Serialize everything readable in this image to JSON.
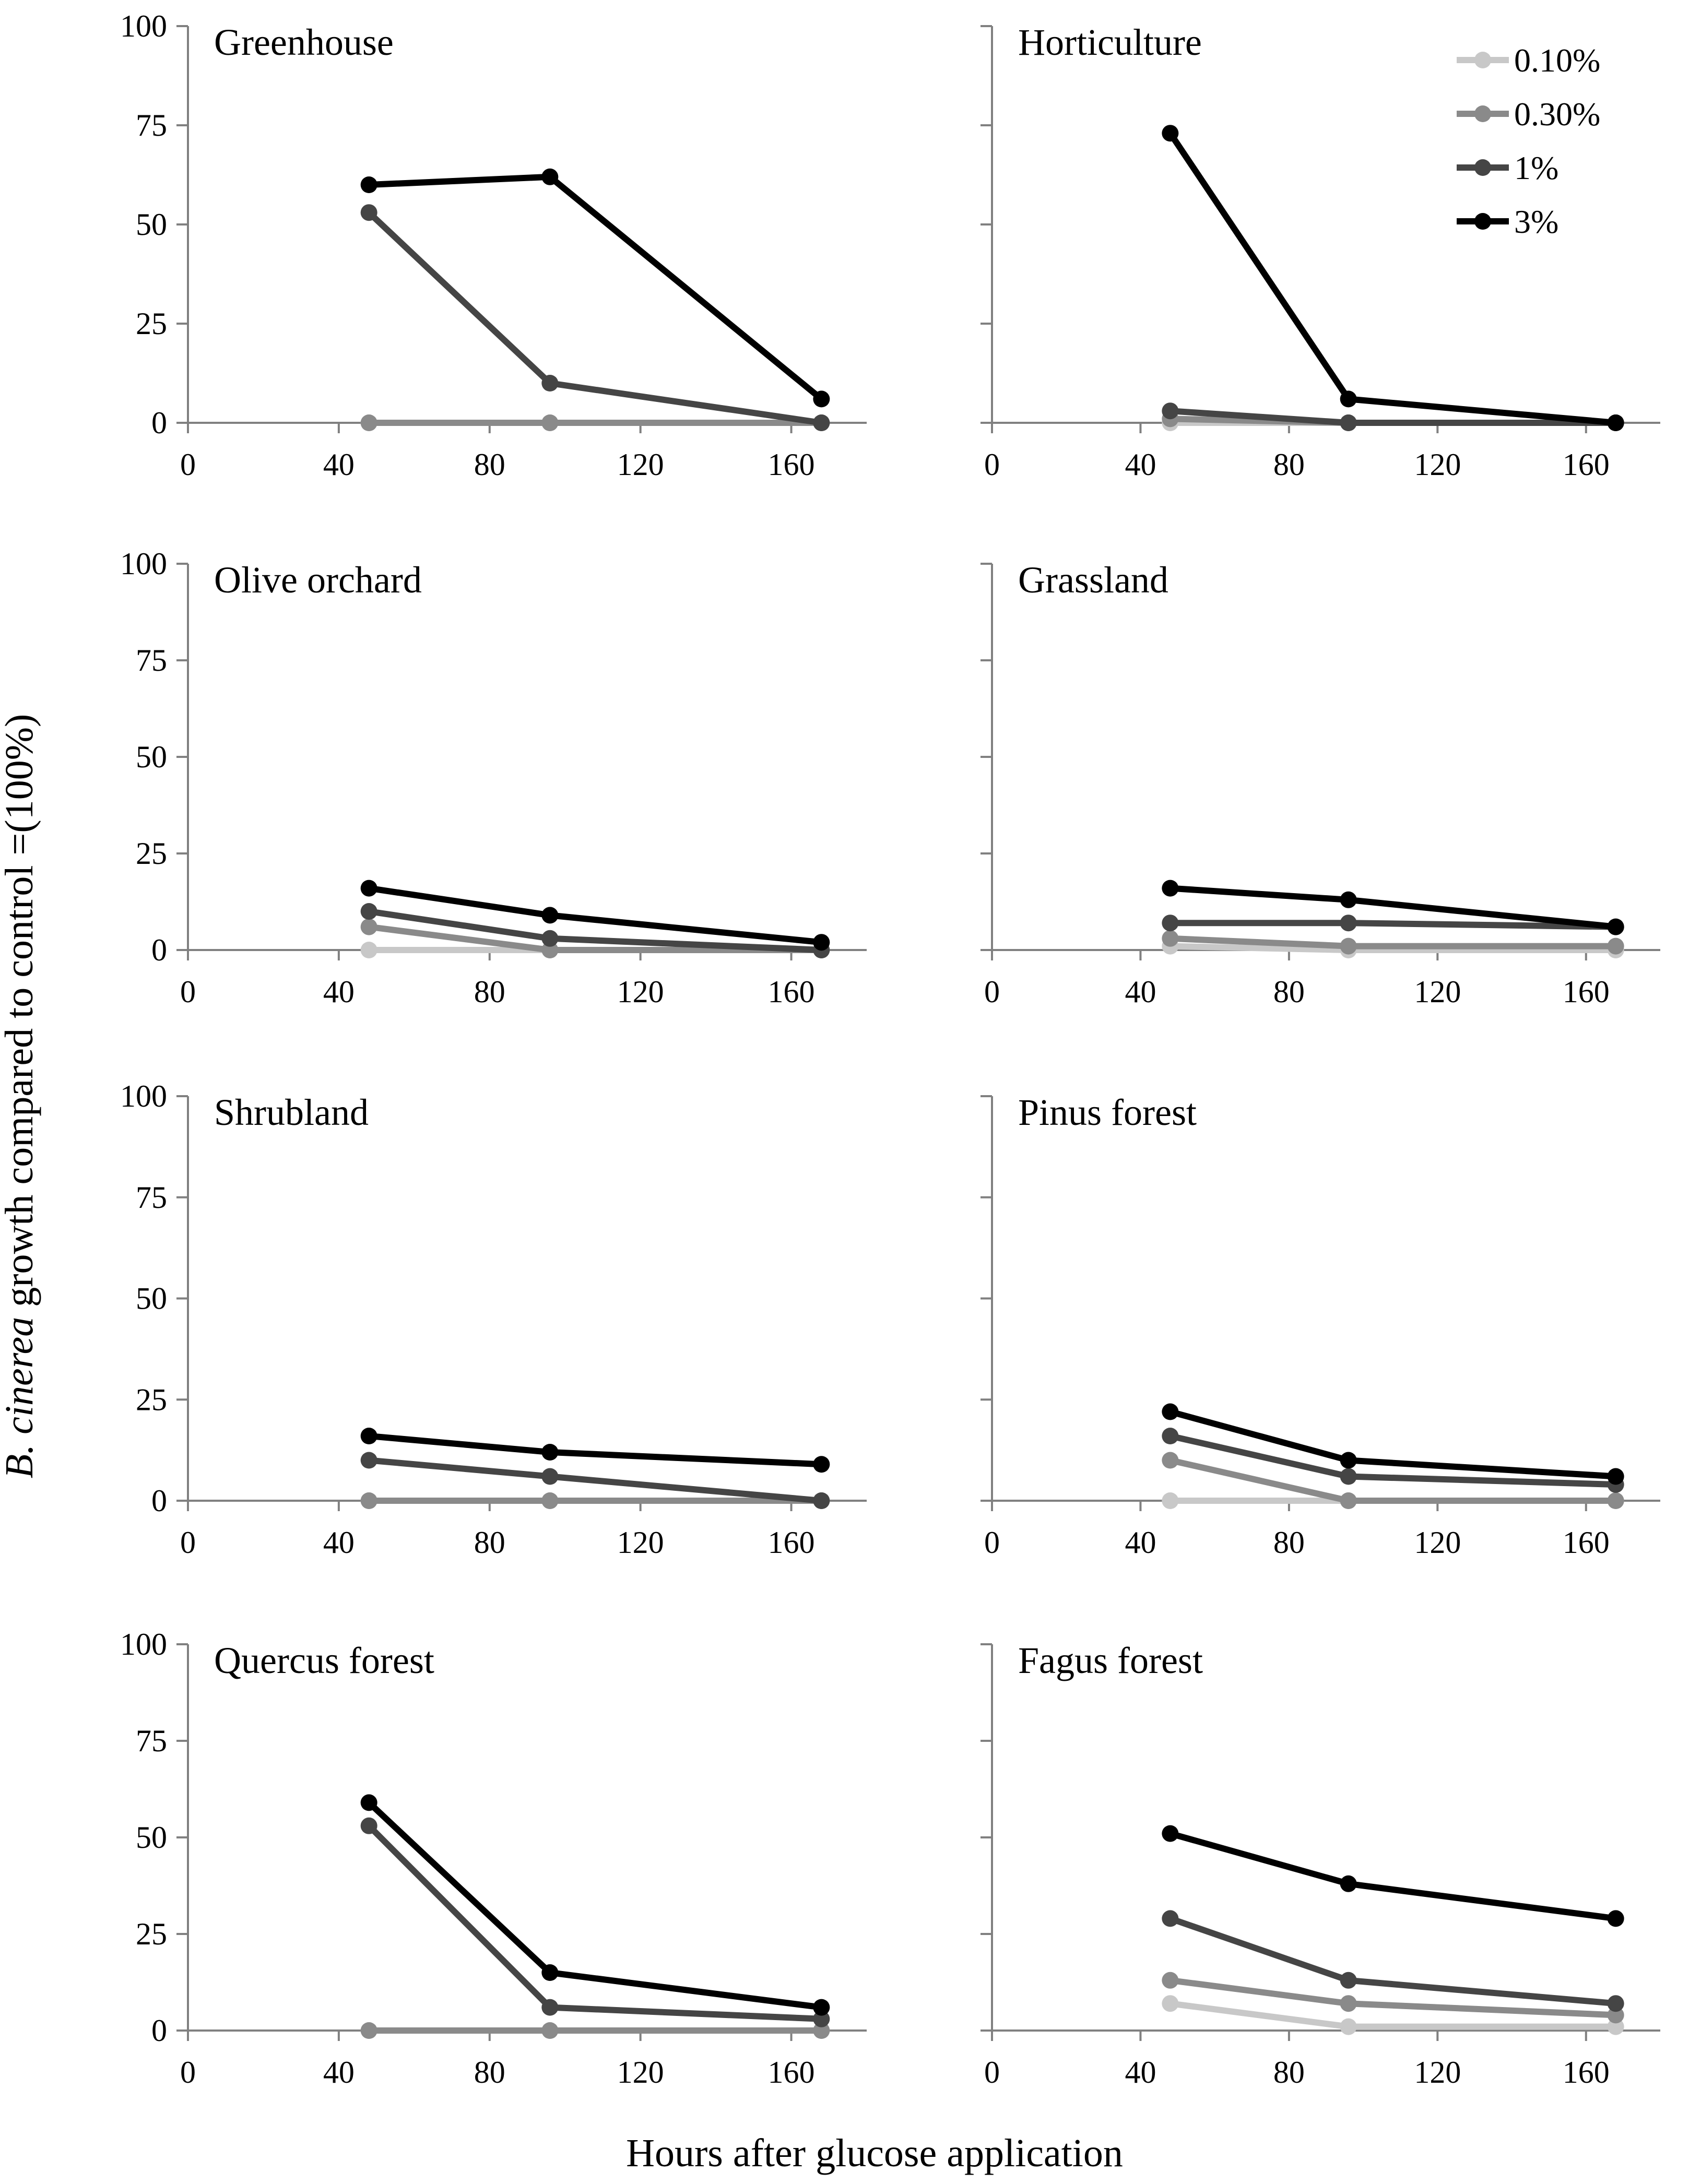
{
  "figure": {
    "y_axis_title_italic": "B. cinerea",
    "y_axis_title_rest": " growth compared to control =(100%)",
    "x_axis_title": "Hours after glucose application"
  },
  "legend": [
    {
      "label": "0.10%",
      "color": "#c8c8c8"
    },
    {
      "label": "0.30%",
      "color": "#8a8a8a"
    },
    {
      "label": "1%",
      "color": "#454545"
    },
    {
      "label": "3%",
      "color": "#000000"
    }
  ],
  "chart_data": [
    {
      "type": "line",
      "title": "Greenhouse",
      "x": [
        48,
        96,
        168
      ],
      "xlim": [
        0,
        180
      ],
      "xticks": [
        0,
        40,
        80,
        120,
        160
      ],
      "ylim": [
        0,
        100
      ],
      "yticks": [
        0,
        25,
        50,
        75,
        100
      ],
      "series": [
        {
          "name": "0.10%",
          "values": [
            0,
            0,
            0
          ]
        },
        {
          "name": "0.30%",
          "values": [
            0,
            0,
            0
          ]
        },
        {
          "name": "1%",
          "values": [
            53,
            10,
            0
          ]
        },
        {
          "name": "3%",
          "values": [
            60,
            62,
            6
          ]
        }
      ]
    },
    {
      "type": "line",
      "title": "Horticulture",
      "x": [
        48,
        96,
        168
      ],
      "xlim": [
        0,
        180
      ],
      "xticks": [
        0,
        40,
        80,
        120,
        160
      ],
      "ylim": [
        0,
        100
      ],
      "yticks": [
        0,
        25,
        50,
        75,
        100
      ],
      "series": [
        {
          "name": "0.10%",
          "values": [
            0,
            0,
            0
          ]
        },
        {
          "name": "0.30%",
          "values": [
            1,
            0,
            0
          ]
        },
        {
          "name": "1%",
          "values": [
            3,
            0,
            0
          ]
        },
        {
          "name": "3%",
          "values": [
            73,
            6,
            0
          ]
        }
      ]
    },
    {
      "type": "line",
      "title": "Olive orchard",
      "x": [
        48,
        96,
        168
      ],
      "xlim": [
        0,
        180
      ],
      "xticks": [
        0,
        40,
        80,
        120,
        160
      ],
      "ylim": [
        0,
        100
      ],
      "yticks": [
        0,
        25,
        50,
        75,
        100
      ],
      "series": [
        {
          "name": "0.10%",
          "values": [
            0,
            0,
            0
          ]
        },
        {
          "name": "0.30%",
          "values": [
            6,
            0,
            0
          ]
        },
        {
          "name": "1%",
          "values": [
            10,
            3,
            0
          ]
        },
        {
          "name": "3%",
          "values": [
            16,
            9,
            2
          ]
        }
      ]
    },
    {
      "type": "line",
      "title": "Grassland",
      "x": [
        48,
        96,
        168
      ],
      "xlim": [
        0,
        180
      ],
      "xticks": [
        0,
        40,
        80,
        120,
        160
      ],
      "ylim": [
        0,
        100
      ],
      "yticks": [
        0,
        25,
        50,
        75,
        100
      ],
      "series": [
        {
          "name": "0.10%",
          "values": [
            1,
            0,
            0
          ]
        },
        {
          "name": "0.30%",
          "values": [
            3,
            1,
            1
          ]
        },
        {
          "name": "1%",
          "values": [
            7,
            7,
            6
          ]
        },
        {
          "name": "3%",
          "values": [
            16,
            13,
            6
          ]
        }
      ]
    },
    {
      "type": "line",
      "title": "Shrubland",
      "x": [
        48,
        96,
        168
      ],
      "xlim": [
        0,
        180
      ],
      "xticks": [
        0,
        40,
        80,
        120,
        160
      ],
      "ylim": [
        0,
        100
      ],
      "yticks": [
        0,
        25,
        50,
        75,
        100
      ],
      "series": [
        {
          "name": "0.10%",
          "values": [
            0,
            0,
            0
          ]
        },
        {
          "name": "0.30%",
          "values": [
            0,
            0,
            0
          ]
        },
        {
          "name": "1%",
          "values": [
            10,
            6,
            0
          ]
        },
        {
          "name": "3%",
          "values": [
            16,
            12,
            9
          ]
        }
      ]
    },
    {
      "type": "line",
      "title": "Pinus forest",
      "x": [
        48,
        96,
        168
      ],
      "xlim": [
        0,
        180
      ],
      "xticks": [
        0,
        40,
        80,
        120,
        160
      ],
      "ylim": [
        0,
        100
      ],
      "yticks": [
        0,
        25,
        50,
        75,
        100
      ],
      "series": [
        {
          "name": "0.10%",
          "values": [
            0,
            0,
            0
          ]
        },
        {
          "name": "0.30%",
          "values": [
            10,
            0,
            0
          ]
        },
        {
          "name": "1%",
          "values": [
            16,
            6,
            4
          ]
        },
        {
          "name": "3%",
          "values": [
            22,
            10,
            6
          ]
        }
      ]
    },
    {
      "type": "line",
      "title": "Quercus  forest",
      "x": [
        48,
        96,
        168
      ],
      "xlim": [
        0,
        180
      ],
      "xticks": [
        0,
        40,
        80,
        120,
        160
      ],
      "ylim": [
        0,
        100
      ],
      "yticks": [
        0,
        25,
        50,
        75,
        100
      ],
      "series": [
        {
          "name": "0.10%",
          "values": [
            0,
            0,
            0
          ]
        },
        {
          "name": "0.30%",
          "values": [
            0,
            0,
            0
          ]
        },
        {
          "name": "1%",
          "values": [
            53,
            6,
            3
          ]
        },
        {
          "name": "3%",
          "values": [
            59,
            15,
            6
          ]
        }
      ]
    },
    {
      "type": "line",
      "title": "Fagus  forest",
      "x": [
        48,
        96,
        168
      ],
      "xlim": [
        0,
        180
      ],
      "xticks": [
        0,
        40,
        80,
        120,
        160
      ],
      "ylim": [
        0,
        100
      ],
      "yticks": [
        0,
        25,
        50,
        75,
        100
      ],
      "series": [
        {
          "name": "0.10%",
          "values": [
            7,
            1,
            1
          ]
        },
        {
          "name": "0.30%",
          "values": [
            13,
            7,
            4
          ]
        },
        {
          "name": "1%",
          "values": [
            29,
            13,
            7
          ]
        },
        {
          "name": "3%",
          "values": [
            51,
            38,
            29
          ]
        }
      ]
    }
  ]
}
